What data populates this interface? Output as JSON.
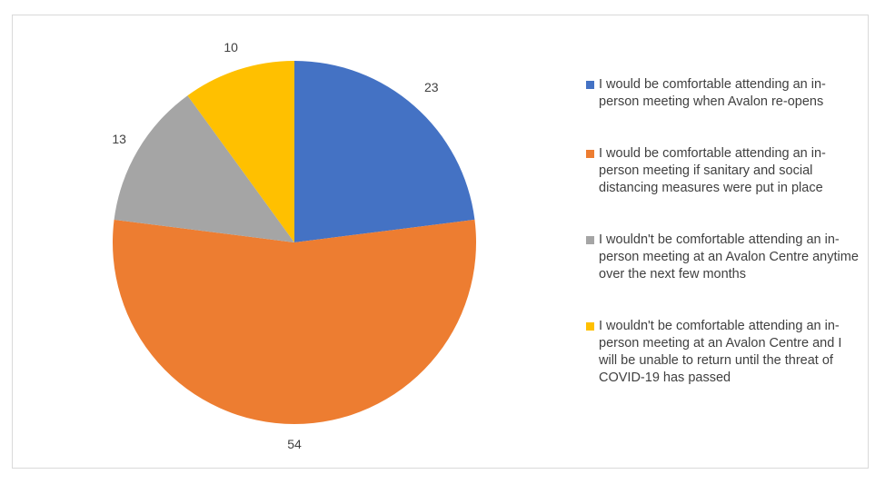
{
  "chart_data": {
    "type": "pie",
    "title": "",
    "start_angle_deg": 0,
    "direction": "clockwise",
    "legend_position": "right",
    "series": [
      {
        "values": [
          23,
          54,
          13,
          10
        ],
        "categories": [
          "I would be comfortable attending an in-person meeting when Avalon re-opens",
          "I would be comfortable attending an in-person meeting if sanitary and social distancing measures were put in place",
          "I wouldn't be comfortable attending an in-person meeting at an Avalon Centre anytime over the next few months",
          "I wouldn't be comfortable attending an in-person meeting at an Avalon Centre and I will be unable to return until the threat of COVID-19 has passed"
        ],
        "labels": [
          "23",
          "54",
          "13",
          "10"
        ],
        "colors": [
          "#4472c4",
          "#ed7d31",
          "#a5a5a5",
          "#ffc000"
        ]
      }
    ]
  },
  "legend": {
    "items": [
      {
        "text": "I would be comfortable attending an in-person meeting when Avalon re-opens",
        "color": "#4472c4"
      },
      {
        "text": "I would be comfortable attending an in-person meeting if sanitary and social distancing measures were put in place",
        "color": "#ed7d31"
      },
      {
        "text": "I wouldn't be comfortable attending an in-person meeting at an Avalon Centre anytime over the next few months",
        "color": "#a5a5a5"
      },
      {
        "text": "I wouldn't be comfortable attending an in-person meeting at an Avalon Centre and I will be unable to return until the threat of COVID-19 has passed",
        "color": "#ffc000"
      }
    ]
  }
}
